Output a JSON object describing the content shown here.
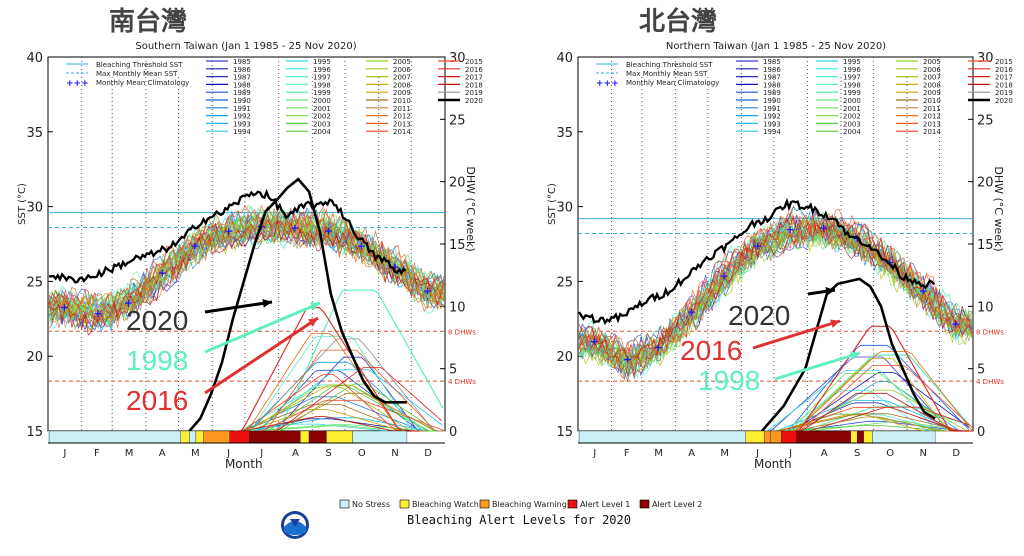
{
  "footer": {
    "title": "Bleaching Alert Levels for 2020",
    "legend": [
      {
        "label": "No Stress",
        "color": "#c8f0f5"
      },
      {
        "label": "Bleaching Watch",
        "color": "#ffee33"
      },
      {
        "label": "Bleaching Warning",
        "color": "#ff9922"
      },
      {
        "label": "Alert Level 1",
        "color": "#ee1111"
      },
      {
        "label": "Alert Level 2",
        "color": "#8b0000"
      }
    ],
    "logo_text": "NOAA"
  },
  "legend_text": {
    "threshold": "Bleaching Threshold SST",
    "mmm": "Max Monthly Mean SST",
    "clim": "Monthly Mean Climatology"
  },
  "years": [
    "1985",
    "1986",
    "1987",
    "1988",
    "1989",
    "1990",
    "1991",
    "1992",
    "1993",
    "1994",
    "1995",
    "1996",
    "1997",
    "1998",
    "1999",
    "2000",
    "2001",
    "2002",
    "2003",
    "2004",
    "2005",
    "2006",
    "2007",
    "2008",
    "2009",
    "2010",
    "2011",
    "2012",
    "2013",
    "2014",
    "2015",
    "2016",
    "2017",
    "2018",
    "2019",
    "2020"
  ],
  "year_colors": [
    "#4040c0",
    "#2020a0",
    "#3030b0",
    "#1010c0",
    "#2050d0",
    "#1060e0",
    "#2080e0",
    "#10a0e8",
    "#20b8e8",
    "#30c8f0",
    "#30d8e8",
    "#40e8e0",
    "#50f0d0",
    "#60f0c0",
    "#40f0a0",
    "#60e880",
    "#70e060",
    "#80e050",
    "#50d040",
    "#60c830",
    "#90d020",
    "#a0c820",
    "#b0c010",
    "#c0b000",
    "#d0a000",
    "#a07020",
    "#c08030",
    "#e07010",
    "#e06020",
    "#f04020",
    "#f05030",
    "#e03030",
    "#d02020",
    "#c01010",
    "#909090",
    "#000000"
  ],
  "months": [
    "J",
    "F",
    "M",
    "A",
    "M",
    "J",
    "J",
    "A",
    "S",
    "O",
    "N",
    "D"
  ],
  "xlabel": "Month",
  "ylabel_left": "SST (°C)",
  "ylabel_right": "DHW (°C week)",
  "chart_data": [
    {
      "type": "line",
      "title": "南台灣",
      "subtitle": "Southern Taiwan      (Jan 1 1985 - 25 Nov 2020)",
      "ylim": [
        15,
        40
      ],
      "y2lim": [
        0,
        30
      ],
      "yticks": [
        15,
        20,
        25,
        30,
        35,
        40
      ],
      "y2ticks": [
        0,
        5,
        10,
        15,
        20,
        25,
        30
      ],
      "bleaching_threshold": 29.6,
      "max_monthly_mean": 28.6,
      "dhw_refs": [
        {
          "value": 4,
          "label": "4 DHWs"
        },
        {
          "value": 8,
          "label": "8 DHWs"
        }
      ],
      "climatology": {
        "day": [
          15,
          46,
          74,
          105,
          135,
          166,
          196,
          227,
          258,
          288,
          319,
          349
        ],
        "sst": [
          23.3,
          22.9,
          23.6,
          25.6,
          27.4,
          28.4,
          28.7,
          28.6,
          28.4,
          27.4,
          26.0,
          24.4
        ]
      },
      "sst_2020": {
        "day": [
          1,
          20,
          40,
          60,
          80,
          100,
          120,
          140,
          160,
          180,
          190,
          200,
          210,
          220,
          230,
          240,
          250,
          260,
          270,
          280,
          290,
          300,
          310,
          320,
          330
        ],
        "sst": [
          25.5,
          25.1,
          25.3,
          25.9,
          26.5,
          26.9,
          27.6,
          29.0,
          29.6,
          30.6,
          31.0,
          30.8,
          30.2,
          29.3,
          29.8,
          30.2,
          30.0,
          30.5,
          29.6,
          28.5,
          27.6,
          26.7,
          26.4,
          25.6,
          25.8
        ]
      },
      "dhw_2020": {
        "day": [
          130,
          140,
          150,
          160,
          170,
          180,
          190,
          200,
          210,
          220,
          230,
          240,
          250,
          260,
          270,
          280,
          290,
          300,
          310,
          320,
          330
        ],
        "dhw": [
          0,
          1,
          3,
          5.5,
          9,
          12,
          15,
          17.6,
          18.5,
          19.5,
          20.2,
          19.2,
          16,
          11,
          8,
          6,
          4,
          2.8,
          2.3,
          2.3,
          2.3
        ]
      },
      "dhw_peaks": {
        "1998": 11.3,
        "2016": 9.9
      },
      "alert_2020": [
        {
          "start": 1,
          "end": 122,
          "level": 0
        },
        {
          "start": 122,
          "end": 130,
          "level": 1
        },
        {
          "start": 130,
          "end": 136,
          "level": 0
        },
        {
          "start": 136,
          "end": 143,
          "level": 1
        },
        {
          "start": 143,
          "end": 167,
          "level": 2
        },
        {
          "start": 167,
          "end": 185,
          "level": 3
        },
        {
          "start": 185,
          "end": 232,
          "level": 4
        },
        {
          "start": 232,
          "end": 240,
          "level": 1
        },
        {
          "start": 240,
          "end": 256,
          "level": 4
        },
        {
          "start": 256,
          "end": 280,
          "level": 1
        },
        {
          "start": 280,
          "end": 330,
          "level": 0
        }
      ],
      "annotations": [
        {
          "text": "2020",
          "color": "#333333"
        },
        {
          "text": "1998",
          "color": "#5ff0c0"
        },
        {
          "text": "2016",
          "color": "#e03030"
        }
      ]
    },
    {
      "type": "line",
      "title": "北台灣",
      "subtitle": "Northern Taiwan      (Jan 1 1985 - 25 Nov 2020)",
      "ylim": [
        15,
        40
      ],
      "y2lim": [
        0,
        30
      ],
      "yticks": [
        15,
        20,
        25,
        30,
        35,
        40
      ],
      "y2ticks": [
        0,
        5,
        10,
        15,
        20,
        25,
        30
      ],
      "bleaching_threshold": 29.2,
      "max_monthly_mean": 28.2,
      "dhw_refs": [
        {
          "value": 4,
          "label": "4 DHWs"
        },
        {
          "value": 8,
          "label": "8 DHWs"
        }
      ],
      "climatology": {
        "day": [
          15,
          46,
          74,
          105,
          135,
          166,
          196,
          227,
          258,
          288,
          319,
          349
        ],
        "sst": [
          21.0,
          19.8,
          20.6,
          23.0,
          25.4,
          27.4,
          28.5,
          28.6,
          27.9,
          26.3,
          24.4,
          22.2
        ]
      },
      "sst_2020": {
        "day": [
          1,
          20,
          40,
          60,
          80,
          100,
          120,
          140,
          160,
          180,
          190,
          200,
          210,
          220,
          230,
          240,
          250,
          260,
          270,
          280,
          290,
          300,
          310,
          320,
          330
        ],
        "sst": [
          22.8,
          22.4,
          22.6,
          23.6,
          24.2,
          25.3,
          26.6,
          27.5,
          28.8,
          29.4,
          30.1,
          30.2,
          30.0,
          29.8,
          29.4,
          29.0,
          28.0,
          27.8,
          27.4,
          26.6,
          26.1,
          25.3,
          25.1,
          24.8,
          24.8
        ]
      },
      "dhw_2020": {
        "day": [
          170,
          180,
          190,
          200,
          210,
          220,
          230,
          240,
          250,
          260,
          270,
          280,
          290,
          300,
          310,
          320,
          330
        ],
        "dhw": [
          0,
          1,
          2,
          3.5,
          5,
          8,
          11,
          11.8,
          12,
          12.2,
          11.6,
          10,
          7,
          5,
          3,
          1.5,
          1
        ]
      },
      "dhw_peaks": {
        "1998": 6.1,
        "2016": 8.4
      },
      "alert_2020": [
        {
          "start": 1,
          "end": 155,
          "level": 0
        },
        {
          "start": 155,
          "end": 172,
          "level": 1
        },
        {
          "start": 172,
          "end": 178,
          "level": 2
        },
        {
          "start": 178,
          "end": 188,
          "level": 2
        },
        {
          "start": 188,
          "end": 202,
          "level": 3
        },
        {
          "start": 202,
          "end": 252,
          "level": 4
        },
        {
          "start": 252,
          "end": 258,
          "level": 1
        },
        {
          "start": 258,
          "end": 264,
          "level": 4
        },
        {
          "start": 264,
          "end": 272,
          "level": 1
        },
        {
          "start": 272,
          "end": 330,
          "level": 0
        }
      ],
      "annotations": [
        {
          "text": "2020",
          "color": "#333333"
        },
        {
          "text": "2016",
          "color": "#e03030"
        },
        {
          "text": "1998",
          "color": "#5ff0c0"
        }
      ]
    }
  ]
}
